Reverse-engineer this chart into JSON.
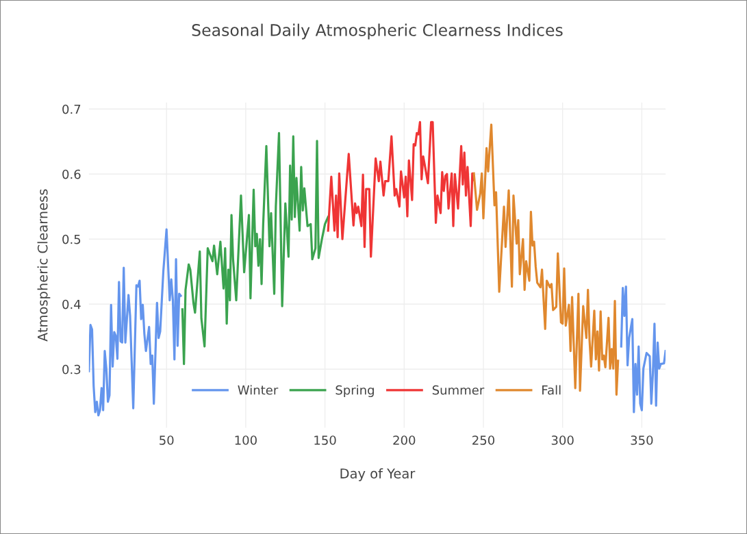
{
  "chart_data": {
    "type": "line",
    "title": "Seasonal Daily Atmospheric Clearness Indices",
    "xlabel": "Day of Year",
    "ylabel": "Atmospheric Clearness",
    "xlim": [
      1,
      365
    ],
    "xticks": [
      50,
      100,
      150,
      200,
      250,
      300,
      350
    ],
    "ylim": [
      0.21,
      0.71
    ],
    "yticks": [
      0.3,
      0.4,
      0.5,
      0.6,
      0.7
    ],
    "grid": true,
    "legend": "bottom",
    "line_style": "solid",
    "series": [
      {
        "name": "Winter",
        "color": "#6495ed",
        "x": [
          1,
          2,
          3,
          4,
          5,
          6,
          7,
          8,
          9,
          10,
          11,
          12,
          13,
          14,
          15,
          16,
          17,
          18,
          19,
          20,
          21,
          22,
          23,
          24,
          26,
          27,
          29,
          31,
          32,
          33,
          34,
          35,
          36,
          37,
          39,
          40,
          41,
          42,
          44,
          45,
          46,
          48,
          50,
          52,
          53,
          54,
          55,
          56,
          57,
          58,
          59,
          100,
          337,
          338,
          339,
          340,
          341,
          342,
          344,
          345,
          346,
          347,
          348,
          349,
          350,
          351,
          353,
          355,
          356,
          357,
          358,
          359,
          360,
          361,
          362,
          364,
          365
        ],
        "values": [
          0.297,
          0.368,
          0.361,
          0.274,
          0.234,
          0.25,
          0.229,
          0.237,
          0.271,
          0.237,
          0.328,
          0.301,
          0.25,
          0.26,
          0.399,
          0.304,
          0.357,
          0.351,
          0.316,
          0.434,
          0.343,
          0.341,
          0.456,
          0.341,
          0.414,
          0.382,
          0.24,
          0.429,
          0.427,
          0.436,
          0.377,
          0.399,
          0.355,
          0.328,
          0.365,
          0.308,
          0.321,
          0.247,
          0.402,
          0.348,
          0.358,
          0.451,
          0.515,
          0.406,
          0.438,
          0.406,
          0.315,
          0.469,
          0.336,
          0.416,
          0.413,
          null,
          0.335,
          0.425,
          0.382,
          0.427,
          0.306,
          0.348,
          0.377,
          0.234,
          0.308,
          0.261,
          0.335,
          0.247,
          0.237,
          0.301,
          0.325,
          0.32,
          0.247,
          0.294,
          0.37,
          0.244,
          0.341,
          0.301,
          0.308,
          0.309,
          0.328
        ]
      },
      {
        "name": "Spring",
        "color": "#3ba34f",
        "x": [
          60,
          61,
          62,
          64,
          65,
          67,
          68,
          71,
          72,
          74,
          76,
          79,
          80,
          82,
          84,
          86,
          87,
          88,
          89,
          90,
          91,
          92,
          94,
          97,
          99,
          102,
          103,
          105,
          106,
          107,
          108,
          109,
          110,
          111,
          113,
          115,
          116,
          118,
          119,
          121,
          123,
          125,
          127,
          128,
          129,
          130,
          131,
          132,
          134,
          135,
          136,
          137,
          139,
          141,
          142,
          144,
          145,
          146,
          148,
          150,
          152
        ],
        "values": [
          0.392,
          0.308,
          0.422,
          0.461,
          0.453,
          0.402,
          0.387,
          0.481,
          0.378,
          0.335,
          0.486,
          0.466,
          0.49,
          0.446,
          0.496,
          0.424,
          0.486,
          0.37,
          0.453,
          0.406,
          0.537,
          0.469,
          0.406,
          0.567,
          0.449,
          0.537,
          0.409,
          0.576,
          0.489,
          0.508,
          0.459,
          0.5,
          0.431,
          0.522,
          0.643,
          0.489,
          0.54,
          0.416,
          0.55,
          0.663,
          0.397,
          0.555,
          0.473,
          0.613,
          0.53,
          0.658,
          0.534,
          0.594,
          0.513,
          0.611,
          0.544,
          0.578,
          0.52,
          0.523,
          0.469,
          0.486,
          0.651,
          0.471,
          0.499,
          0.523,
          0.534
        ]
      },
      {
        "name": "Summer",
        "color": "#ef3535",
        "x": [
          152,
          154,
          156,
          157,
          158,
          159,
          161,
          165,
          168,
          169,
          170,
          171,
          173,
          174,
          175,
          176,
          178,
          179,
          182,
          184,
          185,
          187,
          188,
          190,
          192,
          194,
          195,
          197,
          198,
          200,
          201,
          202,
          203,
          205,
          206,
          207,
          208,
          209,
          210,
          211,
          212,
          213,
          215,
          217,
          218,
          220,
          221,
          223,
          224,
          225,
          226,
          227,
          228,
          230,
          231,
          232,
          234,
          236,
          237,
          238,
          239,
          240,
          242,
          243,
          244
        ],
        "values": [
          0.513,
          0.596,
          0.513,
          0.567,
          0.503,
          0.601,
          0.5,
          0.631,
          0.521,
          0.555,
          0.54,
          0.55,
          0.52,
          0.599,
          0.488,
          0.577,
          0.577,
          0.473,
          0.624,
          0.589,
          0.619,
          0.567,
          0.589,
          0.589,
          0.658,
          0.567,
          0.577,
          0.55,
          0.604,
          0.564,
          0.596,
          0.535,
          0.621,
          0.56,
          0.646,
          0.644,
          0.663,
          0.661,
          0.68,
          0.592,
          0.627,
          0.614,
          0.586,
          0.68,
          0.68,
          0.525,
          0.567,
          0.54,
          0.603,
          0.574,
          0.597,
          0.6,
          0.547,
          0.601,
          0.52,
          0.6,
          0.547,
          0.643,
          0.584,
          0.633,
          0.567,
          0.611,
          0.52,
          0.601,
          0.591
        ]
      },
      {
        "name": "Fall",
        "color": "#e0882e",
        "x": [
          244,
          246,
          248,
          249,
          250,
          252,
          253,
          255,
          257,
          258,
          260,
          263,
          264,
          266,
          267,
          268,
          269,
          271,
          272,
          273,
          275,
          276,
          277,
          279,
          280,
          281,
          282,
          283,
          284,
          286,
          287,
          289,
          290,
          292,
          293,
          294,
          296,
          297,
          299,
          300,
          301,
          302,
          304,
          305,
          306,
          308,
          310,
          311,
          313,
          315,
          316,
          317,
          318,
          320,
          321,
          322,
          323,
          324,
          325,
          326,
          327,
          329,
          330,
          331,
          332,
          333,
          334,
          335
        ],
        "values": [
          0.601,
          0.545,
          0.57,
          0.601,
          0.532,
          0.64,
          0.604,
          0.676,
          0.552,
          0.572,
          0.419,
          0.55,
          0.488,
          0.575,
          0.5,
          0.427,
          0.567,
          0.493,
          0.529,
          0.446,
          0.5,
          0.422,
          0.466,
          0.436,
          0.542,
          0.49,
          0.496,
          0.458,
          0.433,
          0.426,
          0.453,
          0.362,
          0.436,
          0.426,
          0.431,
          0.391,
          0.396,
          0.478,
          0.372,
          0.37,
          0.455,
          0.367,
          0.399,
          0.328,
          0.411,
          0.271,
          0.416,
          0.267,
          0.397,
          0.348,
          0.422,
          0.345,
          0.304,
          0.39,
          0.315,
          0.358,
          0.298,
          0.389,
          0.315,
          0.321,
          0.303,
          0.379,
          0.301,
          0.331,
          0.301,
          0.405,
          0.261,
          0.313
        ]
      }
    ]
  }
}
